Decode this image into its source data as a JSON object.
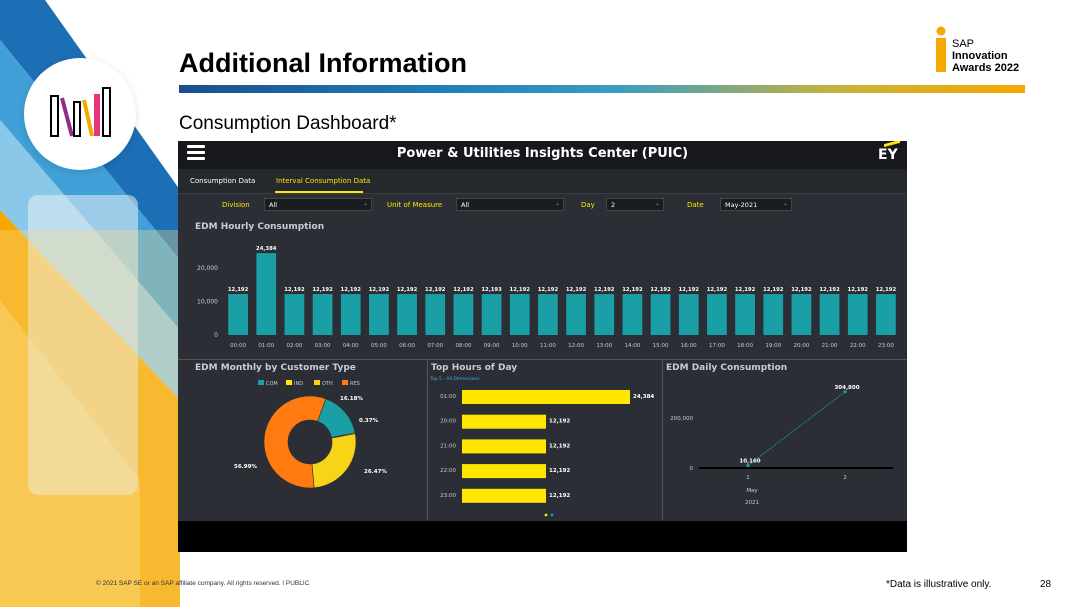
{
  "slide": {
    "title": "Additional Information",
    "subtitle": "Consumption Dashboard*",
    "award": {
      "line1": "SAP",
      "line2": "Innovation",
      "line3": "Awards 2022"
    },
    "footer_copyright": "© 2021 SAP SE or an SAP affiliate company. All rights reserved.  ǀ  PUBLIC",
    "footer_note": "*Data is illustrative only.",
    "page_number": "28"
  },
  "dashboard": {
    "app_title": "Power & Utilities Insights Center (PUIC)",
    "brand": "EY",
    "tabs": [
      {
        "label": "Consumption Data",
        "active": false
      },
      {
        "label": "Interval Consumption Data",
        "active": true
      }
    ],
    "filters": [
      {
        "label": "Division",
        "value": "All"
      },
      {
        "label": "Unit of Measure",
        "value": "All"
      },
      {
        "label": "Day",
        "value": "2"
      },
      {
        "label": "Date",
        "value": "May-2021"
      }
    ],
    "colors": {
      "bar_teal": "#1b9fa6",
      "bar_yellow": "#ffe600",
      "accent_yellow": "#ffe600"
    },
    "panels": {
      "hourly_title": "EDM Hourly Consumption",
      "monthly_title": "EDM Monthly by Customer Type",
      "tophours_title": "Top Hours of Day",
      "tophours_subtitle": "Top 5 - All Dimensions",
      "daily_title": "EDM Daily Consumption"
    }
  },
  "chart_data": [
    {
      "type": "bar",
      "title": "EDM Hourly Consumption",
      "categories": [
        "00:00",
        "01:00",
        "02:00",
        "03:00",
        "04:00",
        "05:00",
        "06:00",
        "07:00",
        "08:00",
        "09:00",
        "10:00",
        "11:00",
        "12:00",
        "13:00",
        "14:00",
        "15:00",
        "16:00",
        "17:00",
        "18:00",
        "19:00",
        "20:00",
        "21:00",
        "22:00",
        "23:00"
      ],
      "values": [
        12192,
        24384,
        12192,
        12192,
        12192,
        12192,
        12192,
        12192,
        12192,
        12193,
        12192,
        12192,
        12192,
        12192,
        12192,
        12192,
        12192,
        12192,
        12192,
        12192,
        12192,
        12192,
        12192,
        12192
      ],
      "value_labels": [
        "12,192",
        "24,384",
        "12,192",
        "12,192",
        "12,192",
        "12,192",
        "12,192",
        "12,192",
        "12,192",
        "12,193",
        "12,192",
        "12,192",
        "12,192",
        "12,192",
        "12,192",
        "12,192",
        "12,192",
        "12,192",
        "12,192",
        "12,192",
        "12,192",
        "12,192",
        "12,192",
        "12,192"
      ],
      "yticks": [
        0,
        10000,
        20000
      ],
      "ytick_labels": [
        "0",
        "10,000",
        "20,000"
      ],
      "ylim": [
        0,
        28000
      ],
      "color": "#1b9fa6"
    },
    {
      "type": "pie",
      "title": "EDM Monthly by Customer Type",
      "donut": true,
      "legend_position": "top",
      "slices": [
        {
          "name": "COM",
          "value": 16.18,
          "label": "16.18%",
          "color": "#1b9fa6"
        },
        {
          "name": "IND",
          "value": 0.37,
          "label": "0.37%",
          "color": "#ffe600"
        },
        {
          "name": "OTH",
          "value": 26.47,
          "label": "26.47%",
          "color": "#f7d417"
        },
        {
          "name": "RES",
          "value": 56.99,
          "label": "56.99%",
          "color": "#ff7a10"
        }
      ]
    },
    {
      "type": "bar",
      "orientation": "horizontal",
      "title": "Top Hours of Day",
      "categories": [
        "01:00",
        "20:00",
        "21:00",
        "22:00",
        "23:00"
      ],
      "values": [
        24384,
        12192,
        12192,
        12192,
        12192
      ],
      "value_labels": [
        "24,384",
        "12,192",
        "12,192",
        "12,192",
        "12,192"
      ],
      "xlim": [
        0,
        24384
      ],
      "color": "#ffe600"
    },
    {
      "type": "line",
      "title": "EDM Daily Consumption",
      "x": [
        1,
        2
      ],
      "x_tick_labels": [
        "1",
        "2"
      ],
      "x_axis_sublabels": [
        "May",
        "2021"
      ],
      "y": [
        10160,
        304800
      ],
      "value_labels": [
        "10,160",
        "304,800"
      ],
      "yticks": [
        0,
        200000
      ],
      "ytick_labels": [
        "0",
        "200,000"
      ],
      "ylim": [
        0,
        320000
      ],
      "color": "#1b9fa6"
    }
  ]
}
